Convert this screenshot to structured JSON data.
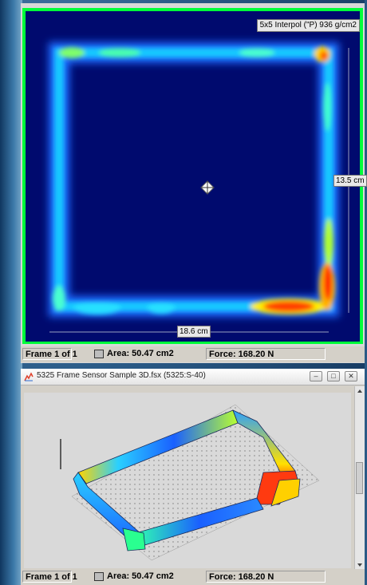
{
  "top_window": {
    "interp_label": "5x5 Interpol (\"P) 936 g/cm2",
    "height_dim": "13.5 cm",
    "width_dim": "18.6 cm",
    "status": {
      "frame": "Frame 1 of 1",
      "area": "Area: 50.47 cm2",
      "force": "Force: 168.20 N"
    }
  },
  "bottom_window": {
    "title": "5325 Frame Sensor Sample 3D.fsx (5325:S-40)",
    "controls": {
      "minimize": "–",
      "restore": "□",
      "close": "✕"
    },
    "status": {
      "frame": "Frame 1 of 1",
      "area": "Area: 50.47 cm2",
      "force": "Force: 168.20 N"
    }
  },
  "colors": {
    "plot_background": "#000a6e",
    "plot_border": "#00ff3a",
    "heat_low": "#1e90ff",
    "heat_mid": "#00ffd0",
    "heat_high": "#ff1a00"
  },
  "icons": [
    "center-crosshair-icon",
    "app-icon",
    "window-minimize-icon",
    "window-restore-icon",
    "window-close-icon"
  ]
}
